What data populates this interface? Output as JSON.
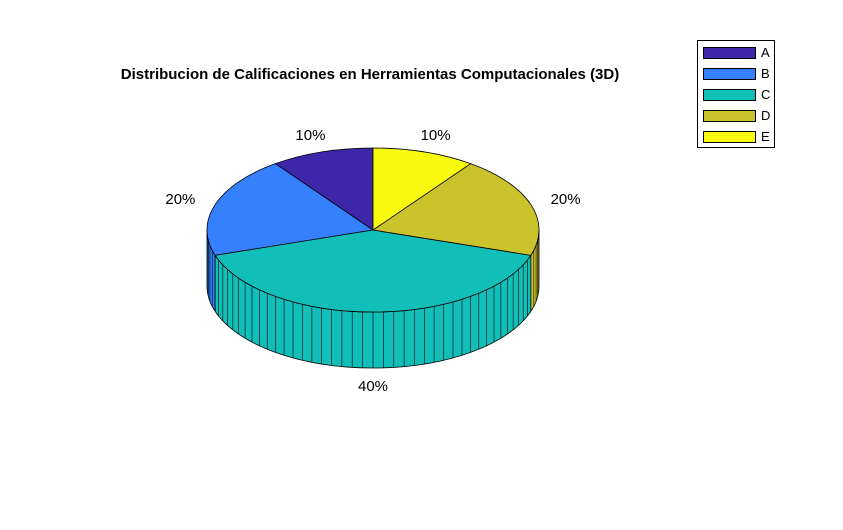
{
  "chart_data": {
    "type": "pie",
    "title": "Distribucion de Calificaciones en Herramientas Computacionales (3D)",
    "categories": [
      "A",
      "B",
      "C",
      "D",
      "E"
    ],
    "values": [
      10,
      20,
      40,
      20,
      10
    ],
    "labels": [
      "10%",
      "20%",
      "40%",
      "20%",
      "10%"
    ],
    "colors": [
      "#3e26a8",
      "#3580ff",
      "#12bfb8",
      "#cbc32c",
      "#fafa10"
    ],
    "legend_position": "top-right",
    "style": "3d"
  }
}
